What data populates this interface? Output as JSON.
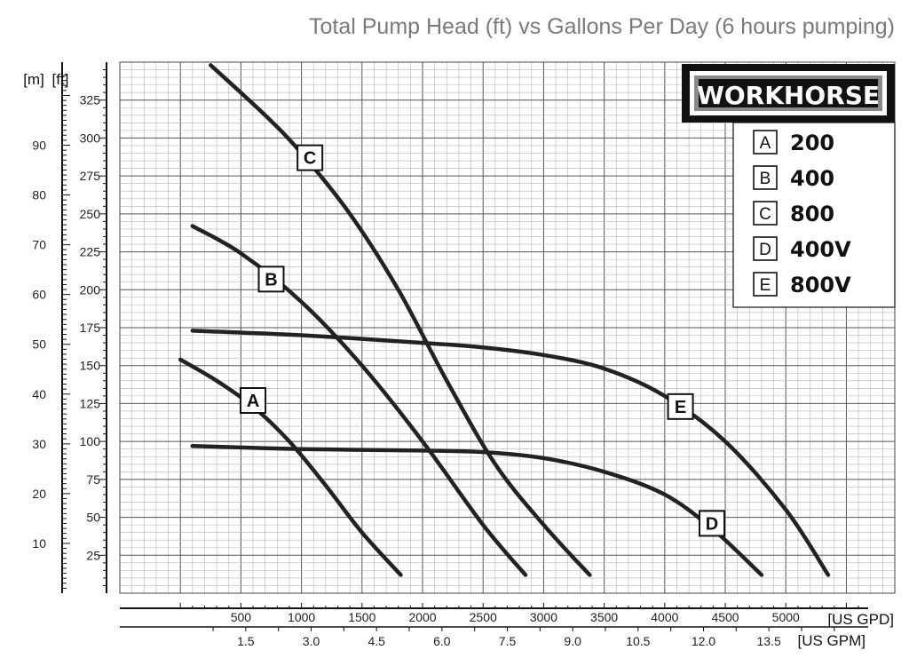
{
  "chart_data": {
    "type": "line",
    "title": "Total Pump Head (ft)  vs Gallons Per Day  (6 hours pumping)",
    "xlabel": "[US GPD]",
    "xlabel2": "[US GPM]",
    "ylabel": "[ft]",
    "ylabel2": "[m]",
    "xlim": [
      -500,
      5900
    ],
    "ylim": [
      0,
      350
    ],
    "grid": true,
    "x_ticks": [
      "500",
      "1000",
      "1500",
      "2000",
      "2500",
      "3000",
      "3500",
      "4000",
      "4500",
      "5000"
    ],
    "x2_ticks": [
      "1.5",
      "3.0",
      "4.5",
      "6.0",
      "7.5",
      "9.0",
      "10.5",
      "12.0",
      "13.5"
    ],
    "y_ticks": [
      "25",
      "50",
      "75",
      "100",
      "125",
      "150",
      "175",
      "200",
      "225",
      "250",
      "275",
      "300",
      "325"
    ],
    "y2_ticks": [
      "10",
      "20",
      "30",
      "40",
      "50",
      "60",
      "70",
      "80",
      "90"
    ],
    "brand": "WORKHORSE",
    "legend": [
      {
        "key": "A",
        "label": "200"
      },
      {
        "key": "B",
        "label": "400"
      },
      {
        "key": "C",
        "label": "800"
      },
      {
        "key": "D",
        "label": "400V"
      },
      {
        "key": "E",
        "label": "800V"
      }
    ],
    "series": [
      {
        "key": "A",
        "x": [
          0,
          300,
          600,
          900,
          1200,
          1500,
          1820
        ],
        "y": [
          154,
          140,
          123,
          100,
          71,
          40,
          12
        ]
      },
      {
        "key": "B",
        "x": [
          100,
          500,
          1000,
          1500,
          2000,
          2500,
          2850
        ],
        "y": [
          242,
          224,
          192,
          150,
          100,
          45,
          12
        ]
      },
      {
        "key": "C",
        "x": [
          250,
          700,
          1000,
          1400,
          1800,
          2200,
          2600,
          3000,
          3380
        ],
        "y": [
          348,
          315,
          290,
          250,
          200,
          140,
          85,
          45,
          12
        ]
      },
      {
        "key": "D",
        "x": [
          100,
          1000,
          2000,
          2500,
          3000,
          3500,
          4000,
          4400,
          4800
        ],
        "y": [
          97,
          95,
          94,
          93,
          89,
          80,
          65,
          42,
          12
        ]
      },
      {
        "key": "E",
        "x": [
          100,
          1000,
          2000,
          2500,
          3000,
          3500,
          4000,
          4500,
          5000,
          5350
        ],
        "y": [
          173,
          170,
          165,
          162,
          157,
          148,
          130,
          100,
          55,
          12
        ]
      }
    ],
    "curve_labels": [
      {
        "key": "A",
        "x": 600,
        "y": 127
      },
      {
        "key": "B",
        "x": 750,
        "y": 207
      },
      {
        "key": "C",
        "x": 1070,
        "y": 287
      },
      {
        "key": "D",
        "x": 4390,
        "y": 46
      },
      {
        "key": "E",
        "x": 4130,
        "y": 123
      }
    ]
  }
}
